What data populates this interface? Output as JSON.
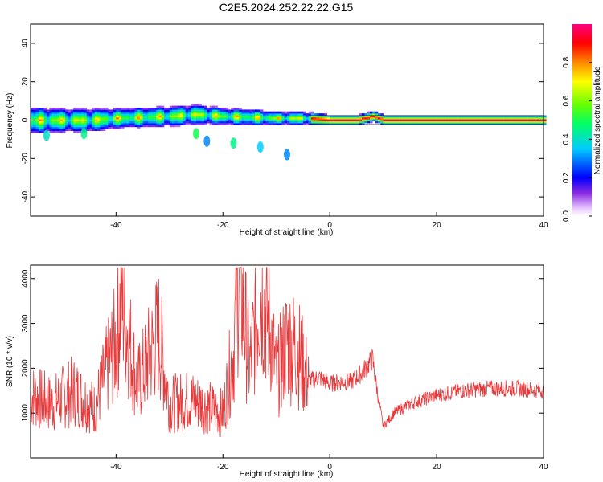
{
  "title": "C2E5.2024.252.22.22.G15",
  "chart_data": [
    {
      "type": "heatmap",
      "xlabel": "Height of straight line (km)",
      "ylabel": "Frequency (Hz)",
      "xlim": [
        -56,
        40
      ],
      "ylim": [
        -50,
        50
      ],
      "xticks": [
        -40,
        -20,
        0,
        20,
        40
      ],
      "yticks": [
        -40,
        -20,
        0,
        20,
        40
      ],
      "colorbar": {
        "label": "Normalized spectral amplitude",
        "range": [
          0,
          1
        ],
        "ticks": [
          "0.0",
          "0.2",
          "0.4",
          "0.6",
          "0.8"
        ],
        "tick_values": [
          0.0,
          0.2,
          0.4,
          0.6,
          0.8
        ]
      },
      "ridge": {
        "x": [
          -56,
          -50,
          -45,
          -40,
          -35,
          -30,
          -25,
          -20,
          -15,
          -10,
          -5,
          0,
          5,
          8,
          10,
          15,
          20,
          30,
          40
        ],
        "center_hz": [
          0,
          0,
          0,
          1,
          1.5,
          2,
          3,
          2,
          1.5,
          1,
          1,
          0,
          0,
          2,
          0,
          0,
          0,
          0,
          0
        ],
        "halfwidth_hz": [
          7,
          6,
          6,
          5,
          5,
          5,
          5,
          4,
          4,
          3,
          3,
          2,
          2,
          2,
          2,
          2,
          2,
          2,
          2
        ]
      },
      "blobs": [
        {
          "x": -23,
          "y": -11,
          "intensity": 0.3
        },
        {
          "x": -18,
          "y": -12,
          "intensity": 0.45
        },
        {
          "x": -13,
          "y": -14,
          "intensity": 0.35
        },
        {
          "x": -8,
          "y": -18,
          "intensity": 0.3
        },
        {
          "x": -25,
          "y": -7,
          "intensity": 0.5
        },
        {
          "x": -53,
          "y": -8,
          "intensity": 0.4
        },
        {
          "x": -46,
          "y": -7,
          "intensity": 0.45
        }
      ]
    },
    {
      "type": "line",
      "xlabel": "Height of straight line (km)",
      "ylabel": "SNR (10 * v/v)",
      "xlim": [
        -56,
        40
      ],
      "ylim": [
        0,
        4300
      ],
      "xticks": [
        -40,
        -20,
        0,
        20,
        40
      ],
      "yticks": [
        1000,
        2000,
        3000,
        4000
      ],
      "color": "#e8383a",
      "series": [
        {
          "x": [
            -56,
            -52,
            -48,
            -44,
            -40,
            -39,
            -36,
            -32,
            -30,
            -26,
            -22,
            -20,
            -18,
            -17,
            -15,
            -13,
            -11,
            -10,
            -8,
            -6,
            -4,
            -2,
            0,
            2,
            4,
            6,
            8,
            9,
            10,
            12,
            15,
            20,
            25,
            30,
            35,
            40
          ],
          "y": [
            1400,
            1200,
            1500,
            1100,
            2600,
            3600,
            1600,
            2800,
            1200,
            1300,
            1100,
            1000,
            2400,
            4200,
            2000,
            3800,
            2800,
            1800,
            2600,
            2400,
            1700,
            1800,
            1650,
            1700,
            1700,
            1900,
            2200,
            1400,
            700,
            1000,
            1200,
            1400,
            1500,
            1550,
            1550,
            1500
          ]
        }
      ]
    }
  ]
}
